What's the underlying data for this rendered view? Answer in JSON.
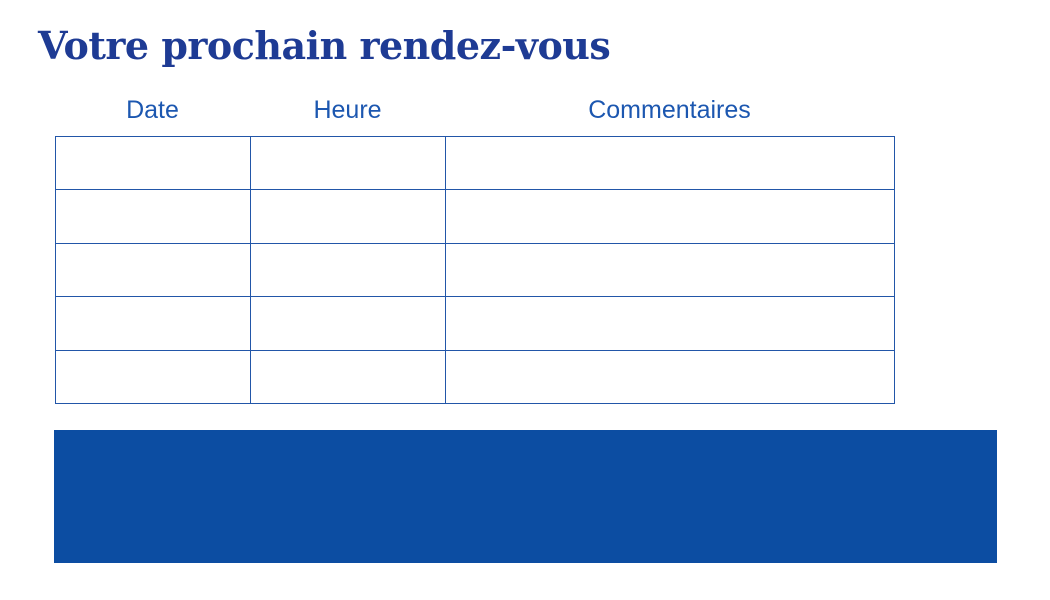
{
  "page": {
    "title": "Votre prochain rendez-vous"
  },
  "table": {
    "headers": [
      "Date",
      "Heure",
      "Commentaires"
    ],
    "rows": [
      [
        "",
        "",
        ""
      ],
      [
        "",
        "",
        ""
      ],
      [
        "",
        "",
        ""
      ],
      [
        "",
        "",
        ""
      ],
      [
        "",
        "",
        ""
      ]
    ]
  },
  "colors": {
    "title_text": "#1e3b94",
    "header_text": "#1c57b0",
    "table_border": "#2256a8",
    "footer_block_bg": "#0c4da2"
  }
}
